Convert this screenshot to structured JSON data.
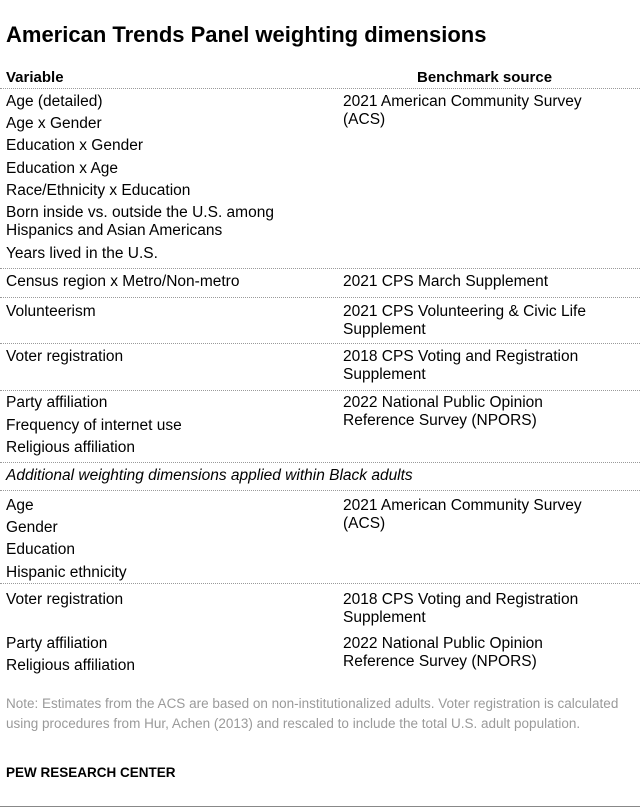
{
  "title": "American Trends Panel weighting dimensions",
  "headers": {
    "variable": "Variable",
    "source": "Benchmark source"
  },
  "groups": [
    {
      "variables": [
        "Age (detailed)",
        "Age x Gender",
        "Education x Gender",
        "Education x Age",
        "Race/Ethnicity x Education",
        "Born inside vs. outside the U.S. among\nHispanics and Asian Americans",
        "Years lived in the U.S."
      ],
      "source": "2021 American Community Survey\n(ACS)"
    },
    {
      "variables": [
        "Census region x Metro/Non-metro"
      ],
      "source": "2021 CPS March Supplement"
    },
    {
      "variables": [
        "Volunteerism"
      ],
      "source": "2021 CPS Volunteering & Civic Life\nSupplement"
    },
    {
      "variables": [
        "Voter registration"
      ],
      "source": "2018 CPS Voting and Registration\nSupplement"
    },
    {
      "variables": [
        "Party affiliation",
        "Frequency of internet use",
        "Religious affiliation"
      ],
      "source": "2022 National Public Opinion\nReference Survey (NPORS)"
    }
  ],
  "subheading": "Additional weighting dimensions applied within Black adults",
  "black_groups": [
    {
      "variables": [
        "Age",
        "Gender",
        "Education",
        "Hispanic ethnicity"
      ],
      "source": "2021 American Community Survey\n(ACS)"
    },
    {
      "variables": [
        "Voter registration"
      ],
      "source": "2018 CPS Voting and Registration\nSupplement"
    },
    {
      "variables": [
        "Party affiliation",
        "Religious affiliation"
      ],
      "source": "2022 National Public Opinion\nReference Survey (NPORS)"
    }
  ],
  "note": "Note: Estimates from the ACS are based on non-institutionalized adults. Voter registration is calculated using procedures from Hur, Achen (2013) and rescaled to include the total U.S. adult population.",
  "source_label": "PEW RESEARCH CENTER"
}
